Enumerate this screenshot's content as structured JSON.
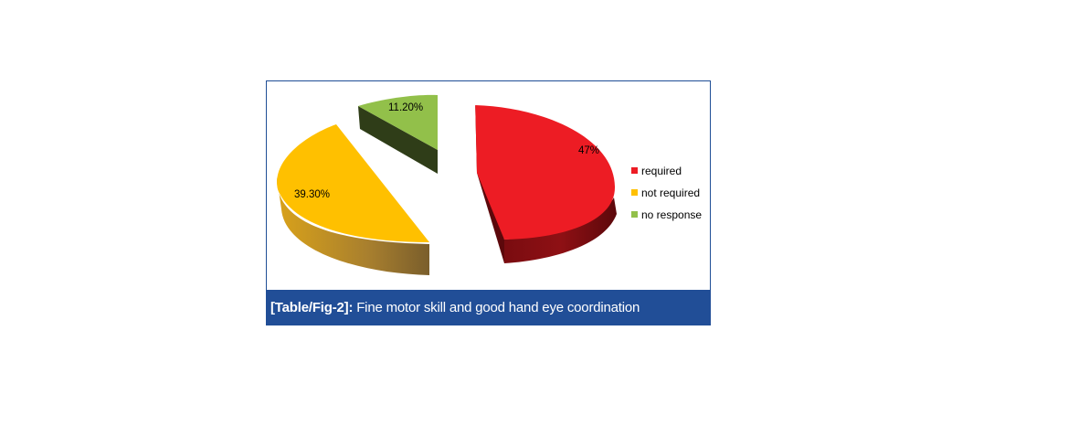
{
  "caption": {
    "tag": "[Table/Fig-2]:",
    "text": "Fine motor skill and good hand eye coordination"
  },
  "chart_data": {
    "type": "pie",
    "style": "3d-exploded",
    "categories": [
      "required",
      "not required",
      "no response"
    ],
    "values": [
      47,
      39.3,
      11.2
    ],
    "labels": [
      "47%",
      "39.30%",
      "11.20%"
    ],
    "colors": [
      "#ed1c24",
      "#ffc000",
      "#92c04a"
    ],
    "legend": {
      "position": "right",
      "entries": [
        "required",
        "not required",
        "no response"
      ]
    }
  }
}
